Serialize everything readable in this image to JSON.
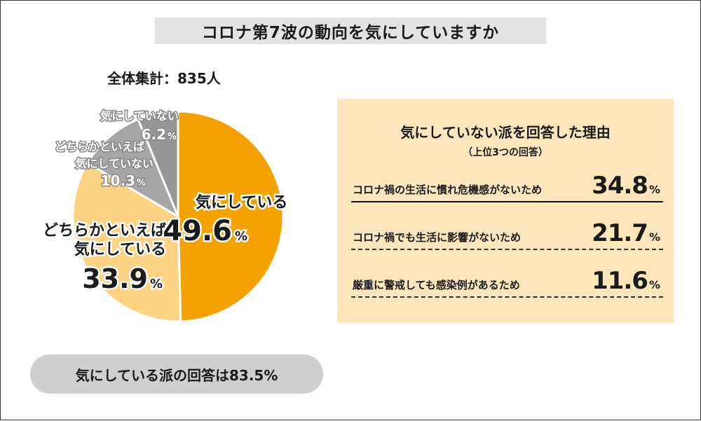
{
  "title": "コロナ第7波の動向を気にしていますか",
  "total_label": "全体集計：835人",
  "chart_data": {
    "type": "pie",
    "unit": "%",
    "slices": [
      {
        "label": "気にしている",
        "value": 49.6,
        "color": "#f5a200"
      },
      {
        "label": "どちらかといえば気にしている",
        "value": 33.9,
        "color": "#fdd283"
      },
      {
        "label": "どちらかといえば気にしていない",
        "value": 10.3,
        "color": "#a6a6a6"
      },
      {
        "label": "気にしていない",
        "value": 6.2,
        "color": "#969696"
      }
    ],
    "start": "12 o'clock, clockwise"
  },
  "pie_labels": {
    "s0_line1": "気にしている",
    "s0_value": "49.6",
    "s1_line1": "どちらかといえば",
    "s1_line2": "気にしている",
    "s1_value": "33.9",
    "s2_line1": "どちらかといえば",
    "s2_line2": "気にしていない",
    "s2_value": "10.3",
    "s3_line1": "気にしていない",
    "s3_value": "6.2",
    "pct": "%"
  },
  "summary": "気にしている派の回答は83.5%",
  "reasons": {
    "title": "気にしていない派を回答した理由",
    "subtitle": "（上位3つの回答）",
    "items": [
      {
        "label": "コロナ禍の生活に慣れ危機感がないため",
        "value": "34.8",
        "unit": "%"
      },
      {
        "label": "コロナ禍でも生活に影響がないため",
        "value": "21.7",
        "unit": "%"
      },
      {
        "label": "厳重に警戒しても感染例があるため",
        "value": "11.6",
        "unit": "%"
      }
    ]
  },
  "colors": {
    "slice_outline": "#ffffff",
    "label_outline_dark": "#ffffff",
    "label_outline_light": "#888888"
  }
}
